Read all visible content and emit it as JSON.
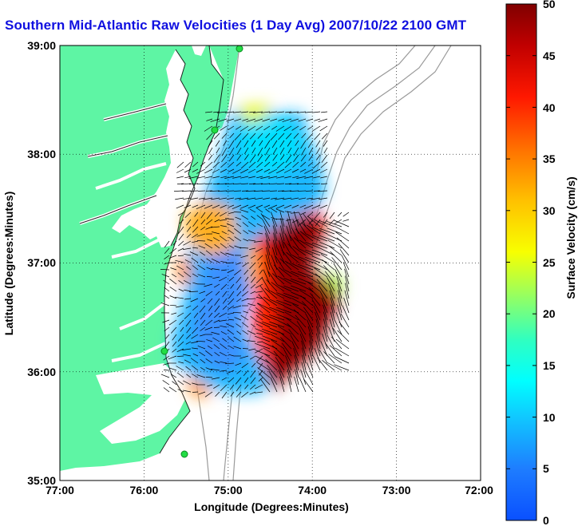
{
  "title": "Southern Mid-Atlantic Raw Velocities (1 Day Avg) 2007/10/22 2100 GMT",
  "map": {
    "xlabel": "Longitude (Degrees:Minutes)",
    "ylabel": "Latitude (Degrees:Minutes)",
    "x_ticks": [
      "77:00",
      "76:00",
      "75:00",
      "74:00",
      "73:00",
      "72:00"
    ],
    "y_ticks": [
      "39:00",
      "38:00",
      "37:00",
      "36:00",
      "35:00"
    ],
    "lon_range": [
      -77,
      -72
    ],
    "lat_range": [
      35,
      39
    ],
    "grid": "dotted",
    "colors": {
      "land": "#5ef5a4",
      "water": "#ffffff",
      "bathymetry_contour": "#9a9a9a",
      "station_marker": "#22dd44",
      "vector": "#000000"
    }
  },
  "colorbar": {
    "label": "Surface Velocity (cm/s)",
    "ticks": [
      "0",
      "5",
      "10",
      "15",
      "20",
      "25",
      "30",
      "35",
      "40",
      "45",
      "50"
    ],
    "min": 0,
    "max": 50,
    "colormap": "jet"
  }
}
